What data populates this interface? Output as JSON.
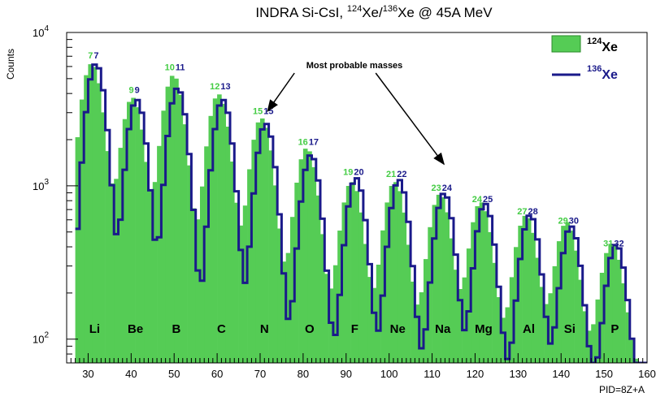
{
  "chart_data": {
    "type": "histogram",
    "title_parts": [
      "INDRA Si-CsI, ",
      "124",
      "Xe/",
      "136",
      "Xe @ 45A MeV"
    ],
    "xlabel": "PID=8Z+A",
    "ylabel": "Counts",
    "xlim": [
      25,
      160
    ],
    "ylim": [
      70,
      10000
    ],
    "y_scale": "log",
    "grid": false,
    "x_ticks": [
      30,
      40,
      50,
      60,
      70,
      80,
      90,
      100,
      110,
      120,
      130,
      140,
      150,
      160
    ],
    "y_ticks": [
      {
        "value": 100,
        "base": "10",
        "exp": "2"
      },
      {
        "value": 1000,
        "base": "10",
        "exp": "3"
      },
      {
        "value": 10000,
        "base": "10",
        "exp": "4"
      }
    ],
    "colors": {
      "xe124": "#55cc55",
      "xe136": "#1a1a8a",
      "mass124_text": "#44cc44",
      "mass136_text": "#1a1a8a"
    },
    "legend": {
      "position": "top-right",
      "entries": [
        {
          "mass": "124",
          "symbol": "Xe",
          "style": "fill",
          "color": "#55cc55"
        },
        {
          "mass": "136",
          "symbol": "Xe",
          "style": "line",
          "color": "#1a1a8a"
        }
      ]
    },
    "annotation": {
      "text": "Most probable masses",
      "targets": [
        {
          "x": 71,
          "y": 3000
        },
        {
          "x": 112,
          "y": 850
        }
      ],
      "anchor": {
        "x": 95,
        "y": 6500
      }
    },
    "elements": [
      {
        "symbol": "Li",
        "pid": 31.5,
        "m124": "7",
        "m136": "7",
        "peak124": 6200,
        "peak136": 6200
      },
      {
        "symbol": "Be",
        "pid": 41,
        "m124": "9",
        "m136": "9",
        "peak124": 3700,
        "peak136": 3600
      },
      {
        "symbol": "B",
        "pid": 50.5,
        "m124": "10",
        "m136": "11",
        "peak124": 5200,
        "peak136": 4300
      },
      {
        "symbol": "C",
        "pid": 61,
        "m124": "12",
        "m136": "13",
        "peak124": 3900,
        "peak136": 3600
      },
      {
        "symbol": "N",
        "pid": 71,
        "m124": "15",
        "m136": "15",
        "peak124": 2700,
        "peak136": 2500
      },
      {
        "symbol": "O",
        "pid": 81.5,
        "m124": "16",
        "m136": "17",
        "peak124": 1700,
        "peak136": 1550
      },
      {
        "symbol": "F",
        "pid": 92,
        "m124": "19",
        "m136": "20",
        "peak124": 1000,
        "peak136": 1080
      },
      {
        "symbol": "Ne",
        "pid": 102,
        "m124": "21",
        "m136": "22",
        "peak124": 1000,
        "peak136": 1050
      },
      {
        "symbol": "Na",
        "pid": 112.5,
        "m124": "23",
        "m136": "24",
        "peak124": 820,
        "peak136": 850
      },
      {
        "symbol": "Mg",
        "pid": 122,
        "m124": "24",
        "m136": "25",
        "peak124": 720,
        "peak136": 720
      },
      {
        "symbol": "Al",
        "pid": 132.5,
        "m124": "27",
        "m136": "28",
        "peak124": 580,
        "peak136": 600
      },
      {
        "symbol": "Si",
        "pid": 142,
        "m124": "29",
        "m136": "30",
        "peak124": 520,
        "peak136": 500
      },
      {
        "symbol": "P",
        "pid": 152.5,
        "m124": "31",
        "m136": "32",
        "peak124": 360,
        "peak136": 370
      }
    ]
  }
}
